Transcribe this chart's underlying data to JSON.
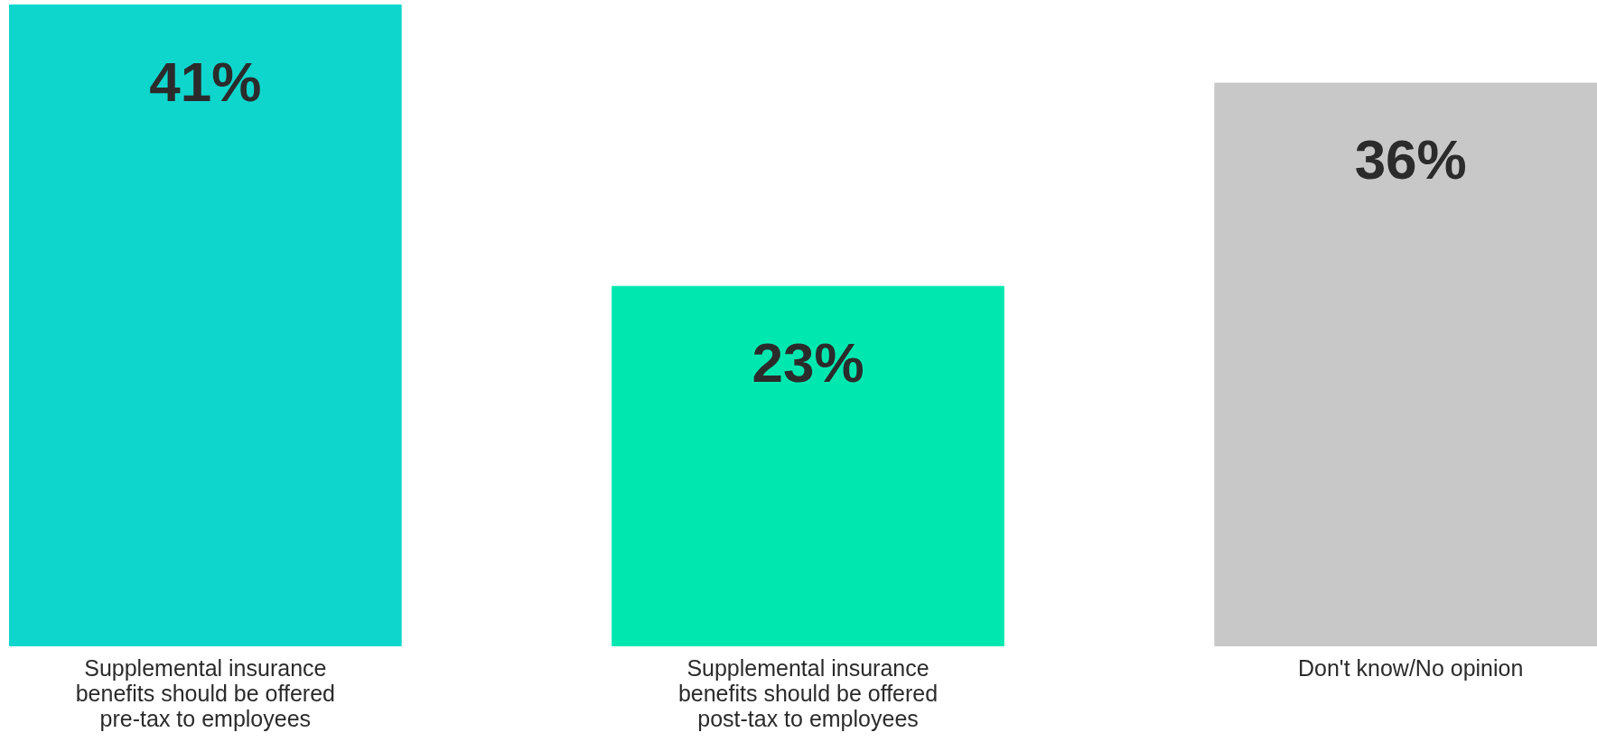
{
  "chart_data": {
    "type": "bar",
    "categories": [
      "Supplemental insurance benefits should be offered pre-tax to employees",
      "Supplemental insurance benefits should be offered post-tax to employees",
      "Don't know/No opinion"
    ],
    "values": [
      41,
      23,
      36
    ],
    "colors": [
      "#0ed6cc",
      "#00e8b0",
      "#c8c8c8"
    ],
    "value_labels": [
      "41%",
      "23%",
      "36%"
    ]
  }
}
